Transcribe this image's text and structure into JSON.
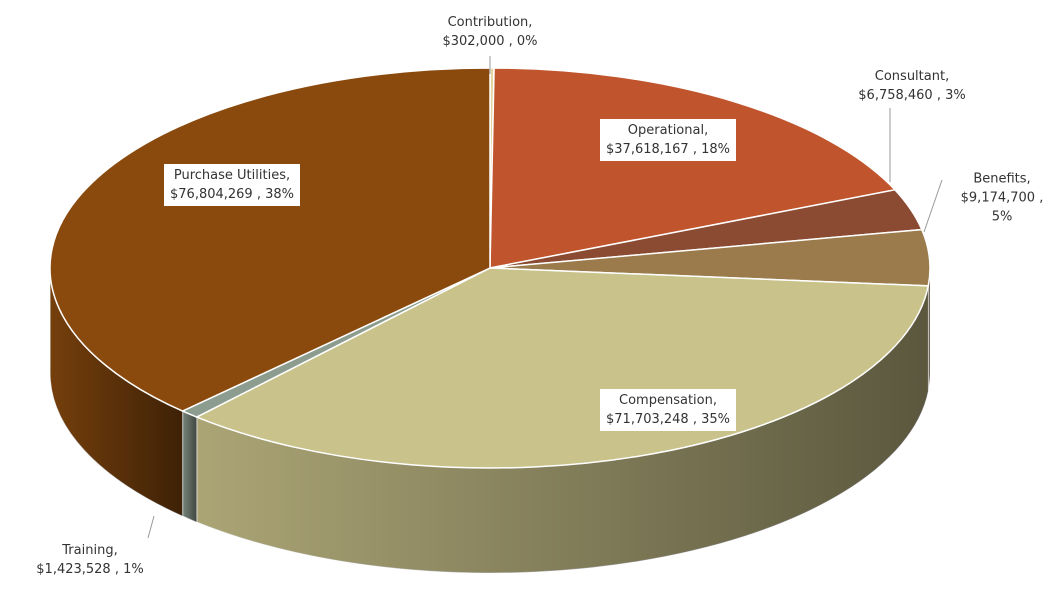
{
  "chart_data": {
    "type": "pie3d",
    "categories": [
      "Contribution,",
      "Operational,",
      "Consultant,",
      "Benefits,",
      "Compensation,",
      "Training,",
      "Purchase Utilities,"
    ],
    "values": [
      302000,
      37618167,
      6758460,
      9174700,
      71703248,
      1423528,
      76804269
    ],
    "value_labels": [
      "$302,000 , 0%",
      "$37,618,167 , 18%",
      "$6,758,460 , 3%",
      "$9,174,700 , 5%",
      "$71,703,248 , 35%",
      "$1,423,528 , 1%",
      "$76,804,269 , 38%"
    ],
    "colors": [
      "#e6d4a2",
      "#c0542c",
      "#8a4b32",
      "#9b7b4c",
      "#c9c28a",
      "#8c9c8e",
      "#8a4a0e"
    ]
  }
}
